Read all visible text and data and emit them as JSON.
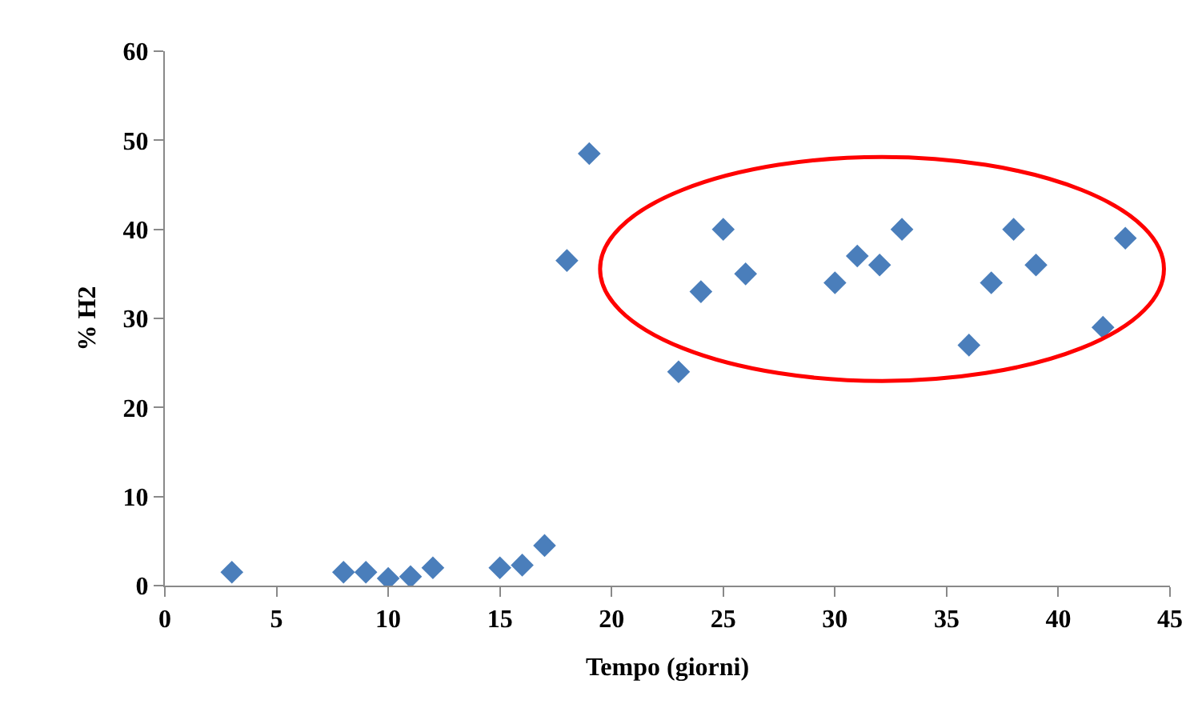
{
  "chart_data": {
    "type": "scatter",
    "xlabel": "Tempo (giorni)",
    "ylabel": "% H2",
    "x": [
      3,
      8,
      9,
      10,
      11,
      12,
      15,
      16,
      17,
      18,
      19,
      23,
      24,
      25,
      26,
      30,
      31,
      32,
      33,
      36,
      37,
      38,
      39,
      42,
      43
    ],
    "series": [
      {
        "color": "#4a7ebb",
        "values": [
          1.5,
          1.5,
          1.5,
          0.8,
          1,
          2,
          2,
          2.3,
          4.5,
          36.5,
          48.5,
          24,
          33,
          40,
          35,
          34,
          37,
          36,
          40,
          27,
          34,
          40,
          36,
          29,
          39
        ]
      }
    ],
    "xlim": [
      0,
      45
    ],
    "xticks": [
      0,
      5,
      10,
      15,
      20,
      25,
      30,
      35,
      40,
      45
    ],
    "ylim": [
      0,
      60
    ],
    "yticks": [
      0,
      10,
      20,
      30,
      40,
      50,
      60
    ],
    "marker": "diamond"
  }
}
